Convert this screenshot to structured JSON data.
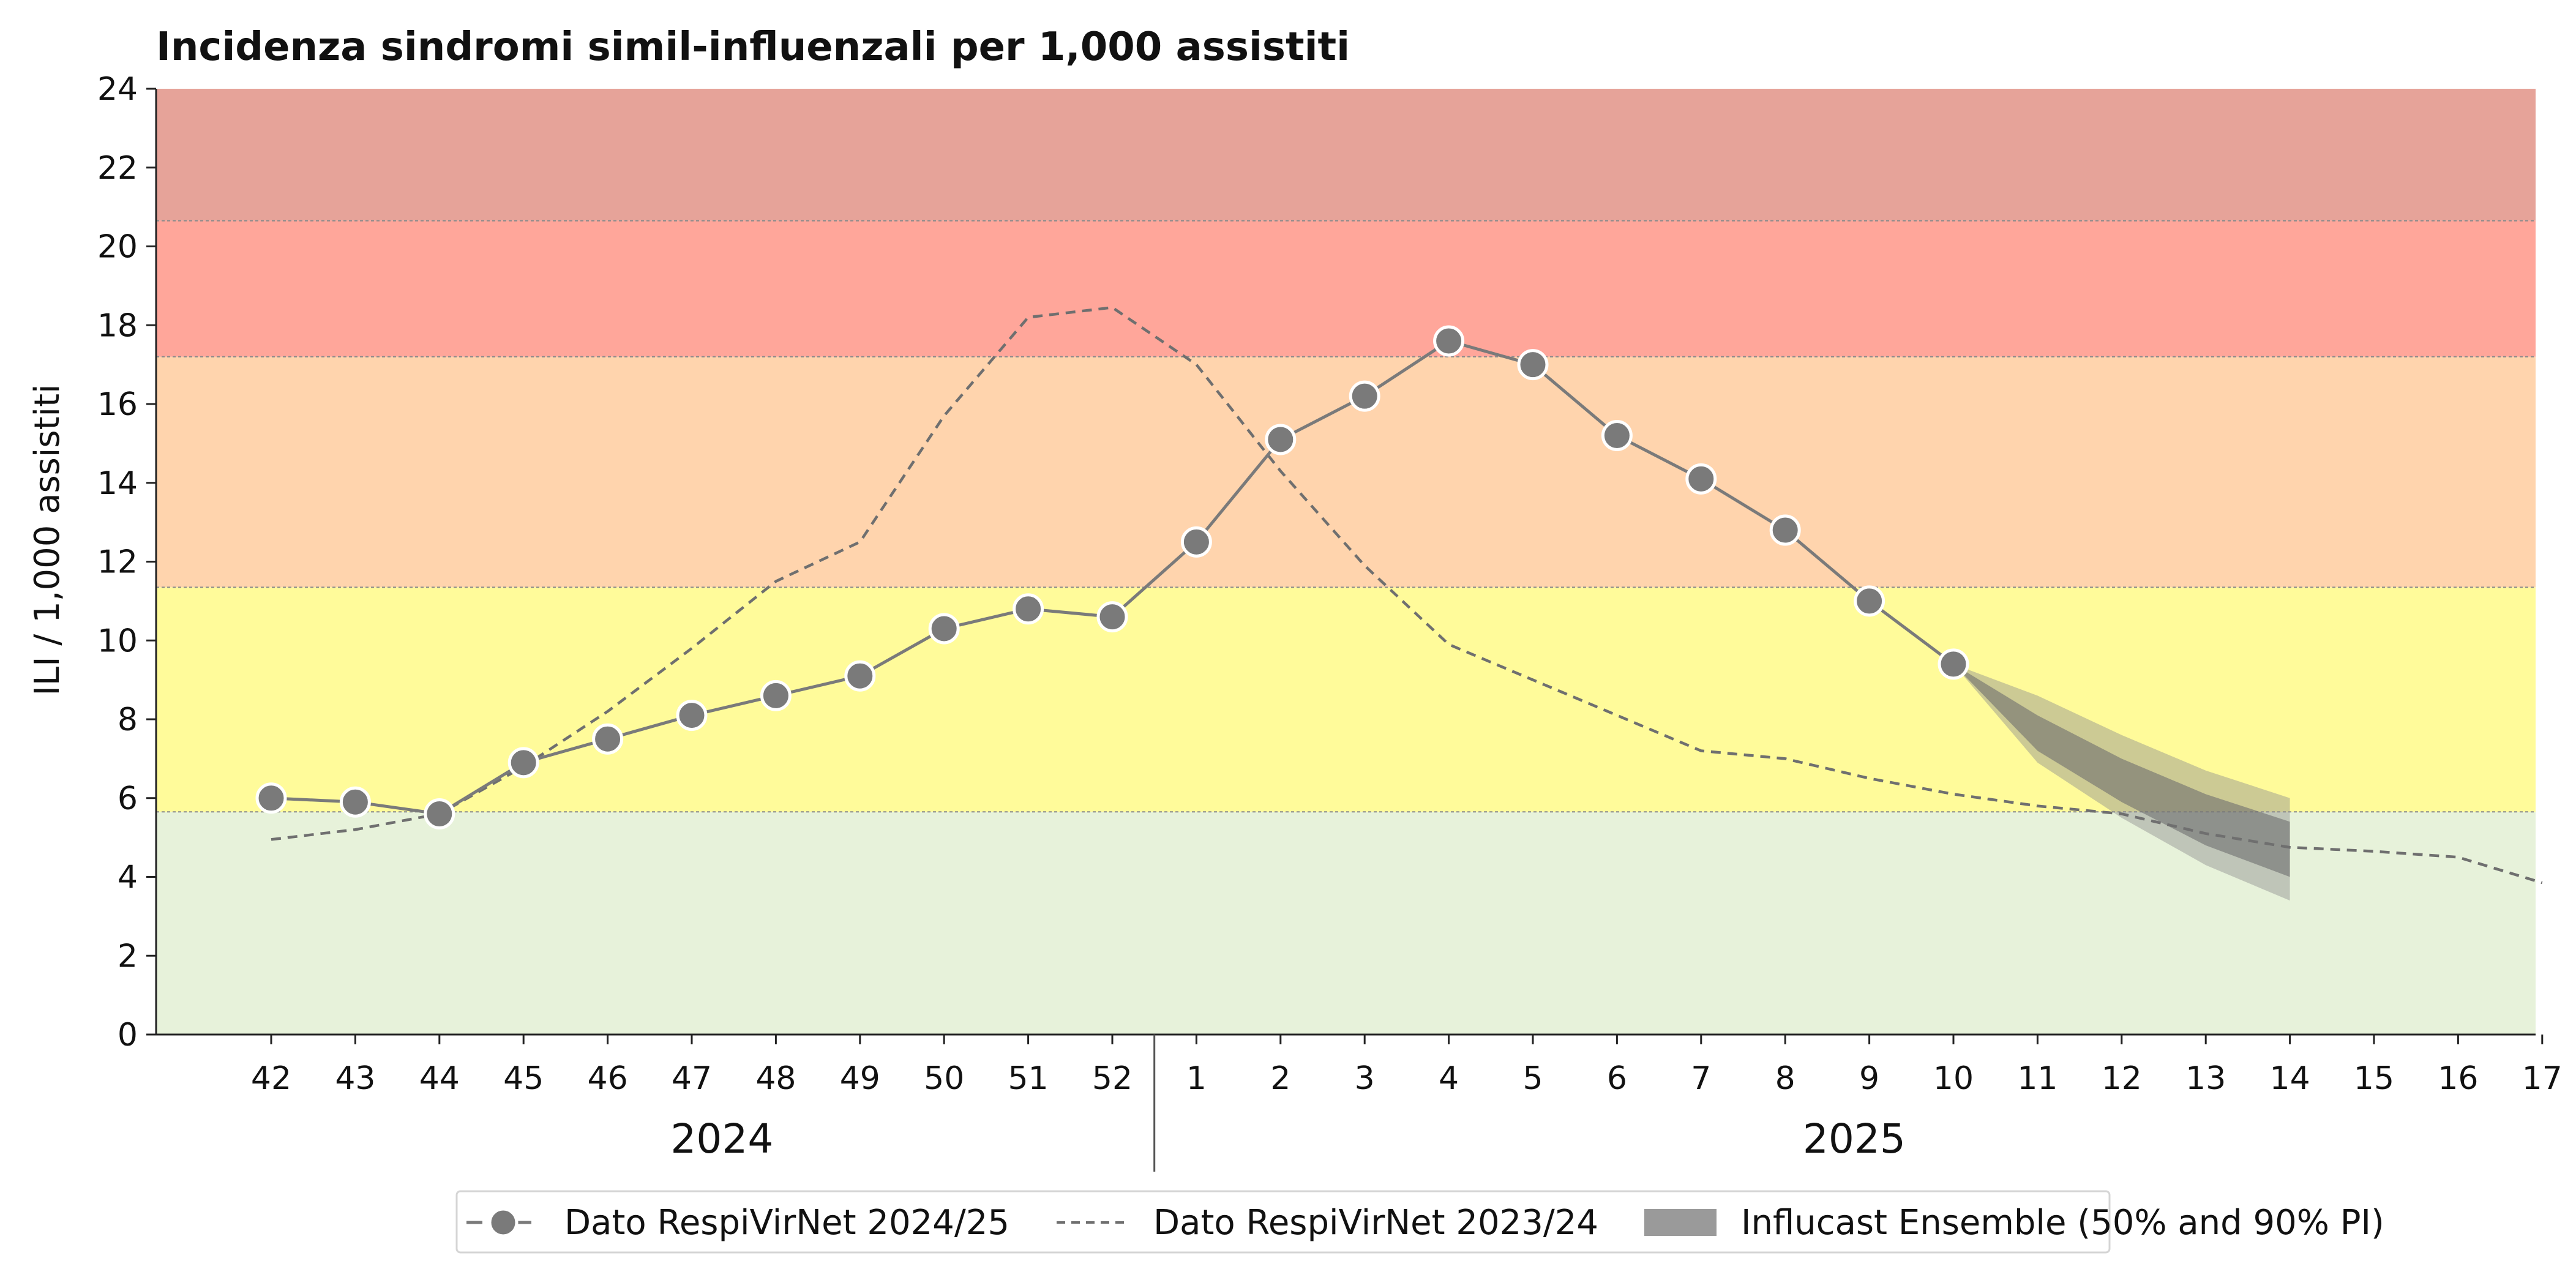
{
  "chart_data": {
    "type": "line",
    "title": "Incidenza sindromi simil-influenzali per 1,000 assistiti",
    "ylabel": "ILI / 1,000 assistiti",
    "xlabel": "",
    "ylim": [
      0,
      24
    ],
    "y_ticks": [
      "0",
      "2",
      "4",
      "6",
      "8",
      "10",
      "12",
      "14",
      "16",
      "18",
      "20",
      "22",
      "24"
    ],
    "weeks": [
      "42",
      "43",
      "44",
      "45",
      "46",
      "47",
      "48",
      "49",
      "50",
      "51",
      "52",
      "1",
      "2",
      "3",
      "4",
      "5",
      "6",
      "7",
      "8",
      "9",
      "10",
      "11",
      "12",
      "13",
      "14",
      "15",
      "16",
      "17"
    ],
    "year_labels": [
      "2024",
      "2025"
    ],
    "grid": false,
    "legend_position": "bottom",
    "intensity_bands": [
      {
        "from": 0,
        "to": 5.65,
        "color": "#e7f2da"
      },
      {
        "from": 5.65,
        "to": 11.35,
        "color": "#fffb9a"
      },
      {
        "from": 11.35,
        "to": 17.2,
        "color": "#ffd4ad"
      },
      {
        "from": 17.2,
        "to": 20.65,
        "color": "#ffa69a"
      },
      {
        "from": 20.65,
        "to": 24,
        "color": "#e6a399"
      }
    ],
    "series": [
      {
        "name": "Dato RespiVirNet 2024/25",
        "style": "solid-markers",
        "color": "#7a7a7a",
        "points": [
          {
            "week": "42",
            "y": 6.0
          },
          {
            "week": "43",
            "y": 5.9
          },
          {
            "week": "44",
            "y": 5.6
          },
          {
            "week": "45",
            "y": 6.9
          },
          {
            "week": "46",
            "y": 7.5
          },
          {
            "week": "47",
            "y": 8.1
          },
          {
            "week": "48",
            "y": 8.6
          },
          {
            "week": "49",
            "y": 9.1
          },
          {
            "week": "50",
            "y": 10.3
          },
          {
            "week": "51",
            "y": 10.8
          },
          {
            "week": "52",
            "y": 10.6
          },
          {
            "week": "1",
            "y": 12.5
          },
          {
            "week": "2",
            "y": 15.1
          },
          {
            "week": "3",
            "y": 16.2
          },
          {
            "week": "4",
            "y": 17.6
          },
          {
            "week": "5",
            "y": 17.0
          },
          {
            "week": "6",
            "y": 15.2
          },
          {
            "week": "7",
            "y": 14.1
          },
          {
            "week": "8",
            "y": 12.8
          },
          {
            "week": "9",
            "y": 11.0
          },
          {
            "week": "10",
            "y": 9.4
          }
        ]
      },
      {
        "name": "Dato RespiVirNet 2023/24",
        "style": "dashed",
        "color": "#6f6f6f",
        "points": [
          {
            "week": "42",
            "y": 4.95
          },
          {
            "week": "43",
            "y": 5.2
          },
          {
            "week": "44",
            "y": 5.6
          },
          {
            "week": "45",
            "y": 6.8
          },
          {
            "week": "46",
            "y": 8.2
          },
          {
            "week": "47",
            "y": 9.8
          },
          {
            "week": "48",
            "y": 11.5
          },
          {
            "week": "49",
            "y": 12.5
          },
          {
            "week": "50",
            "y": 15.7
          },
          {
            "week": "51",
            "y": 18.2
          },
          {
            "week": "52",
            "y": 18.45
          },
          {
            "week": "1",
            "y": 17.0
          },
          {
            "week": "2",
            "y": 14.3
          },
          {
            "week": "3",
            "y": 11.9
          },
          {
            "week": "4",
            "y": 9.9
          },
          {
            "week": "5",
            "y": 9.0
          },
          {
            "week": "6",
            "y": 8.1
          },
          {
            "week": "7",
            "y": 7.2
          },
          {
            "week": "8",
            "y": 7.0
          },
          {
            "week": "9",
            "y": 6.5
          },
          {
            "week": "10",
            "y": 6.1
          },
          {
            "week": "11",
            "y": 5.8
          },
          {
            "week": "12",
            "y": 5.6
          },
          {
            "week": "13",
            "y": 5.1
          },
          {
            "week": "14",
            "y": 4.75
          },
          {
            "week": "15",
            "y": 4.65
          },
          {
            "week": "16",
            "y": 4.5
          },
          {
            "week": "17",
            "y": 3.85
          }
        ]
      }
    ],
    "forecast": {
      "name": "Influcast Ensemble (50% and 90% PI)",
      "color": "#7a7a7a",
      "weeks": [
        "10",
        "11",
        "12",
        "13",
        "14"
      ],
      "pi90_low": [
        9.4,
        6.9,
        5.5,
        4.3,
        3.4
      ],
      "pi90_high": [
        9.4,
        8.6,
        7.6,
        6.7,
        6.0
      ],
      "pi50_low": [
        9.4,
        7.2,
        5.9,
        4.8,
        4.0
      ],
      "pi50_high": [
        9.4,
        8.1,
        7.0,
        6.1,
        5.4
      ]
    }
  }
}
